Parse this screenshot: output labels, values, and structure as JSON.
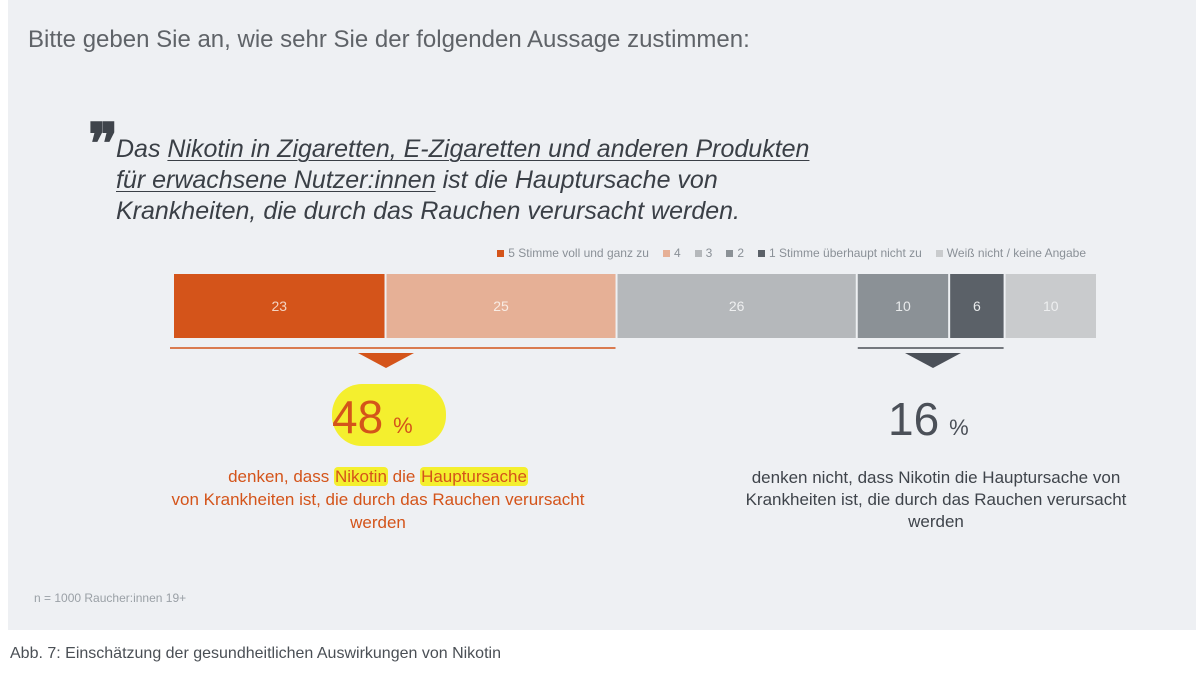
{
  "question": "Bitte geben Sie an, wie sehr Sie der folgenden Aussage zustimmen:",
  "quote": {
    "part1": "Das ",
    "underlined": "Nikotin in Zigaretten, E-Zigaretten und anderen Produkten für erwachsene Nutzer:innen",
    "part2": " ist die Hauptursache von Krankheiten, die durch das Rauchen verursacht werden."
  },
  "chart_data": {
    "type": "bar",
    "orientation": "horizontal-stacked",
    "categories": [
      "5 Stimme voll und ganz zu",
      "4",
      "3",
      "2",
      "1 Stimme überhaupt nicht zu",
      "Weiß nicht / keine Angabe"
    ],
    "values": [
      23,
      25,
      26,
      10,
      6,
      10
    ],
    "colors": [
      "#d4541a",
      "#e6b096",
      "#b5b8bb",
      "#8b9196",
      "#5b6168",
      "#c9cbcd"
    ],
    "value_label_colors": [
      "#f4d3c2",
      "#f9ece4",
      "#eeeff0",
      "#e8eaeb",
      "#e8eaeb",
      "#eeeff0"
    ]
  },
  "summary_left": {
    "value": "48",
    "unit": "%",
    "text_pre": "denken, dass ",
    "hl1": "Nikotin",
    "text_mid": " die ",
    "hl2": "Hauptursache",
    "text_post": "von Krankheiten ist, die durch das Rauchen verursacht werden",
    "color": "#d4541a"
  },
  "summary_right": {
    "value": "16",
    "unit": "%",
    "text": "denken nicht, dass Nikotin die Hauptursache von Krankheiten ist, die durch das Rauchen verursacht werden",
    "color": "#4b5058"
  },
  "footnote": "n = 1000 Raucher:innen 19+",
  "caption": "Abb. 7: Einschätzung der gesundheitlichen Auswirkungen von Nikotin"
}
